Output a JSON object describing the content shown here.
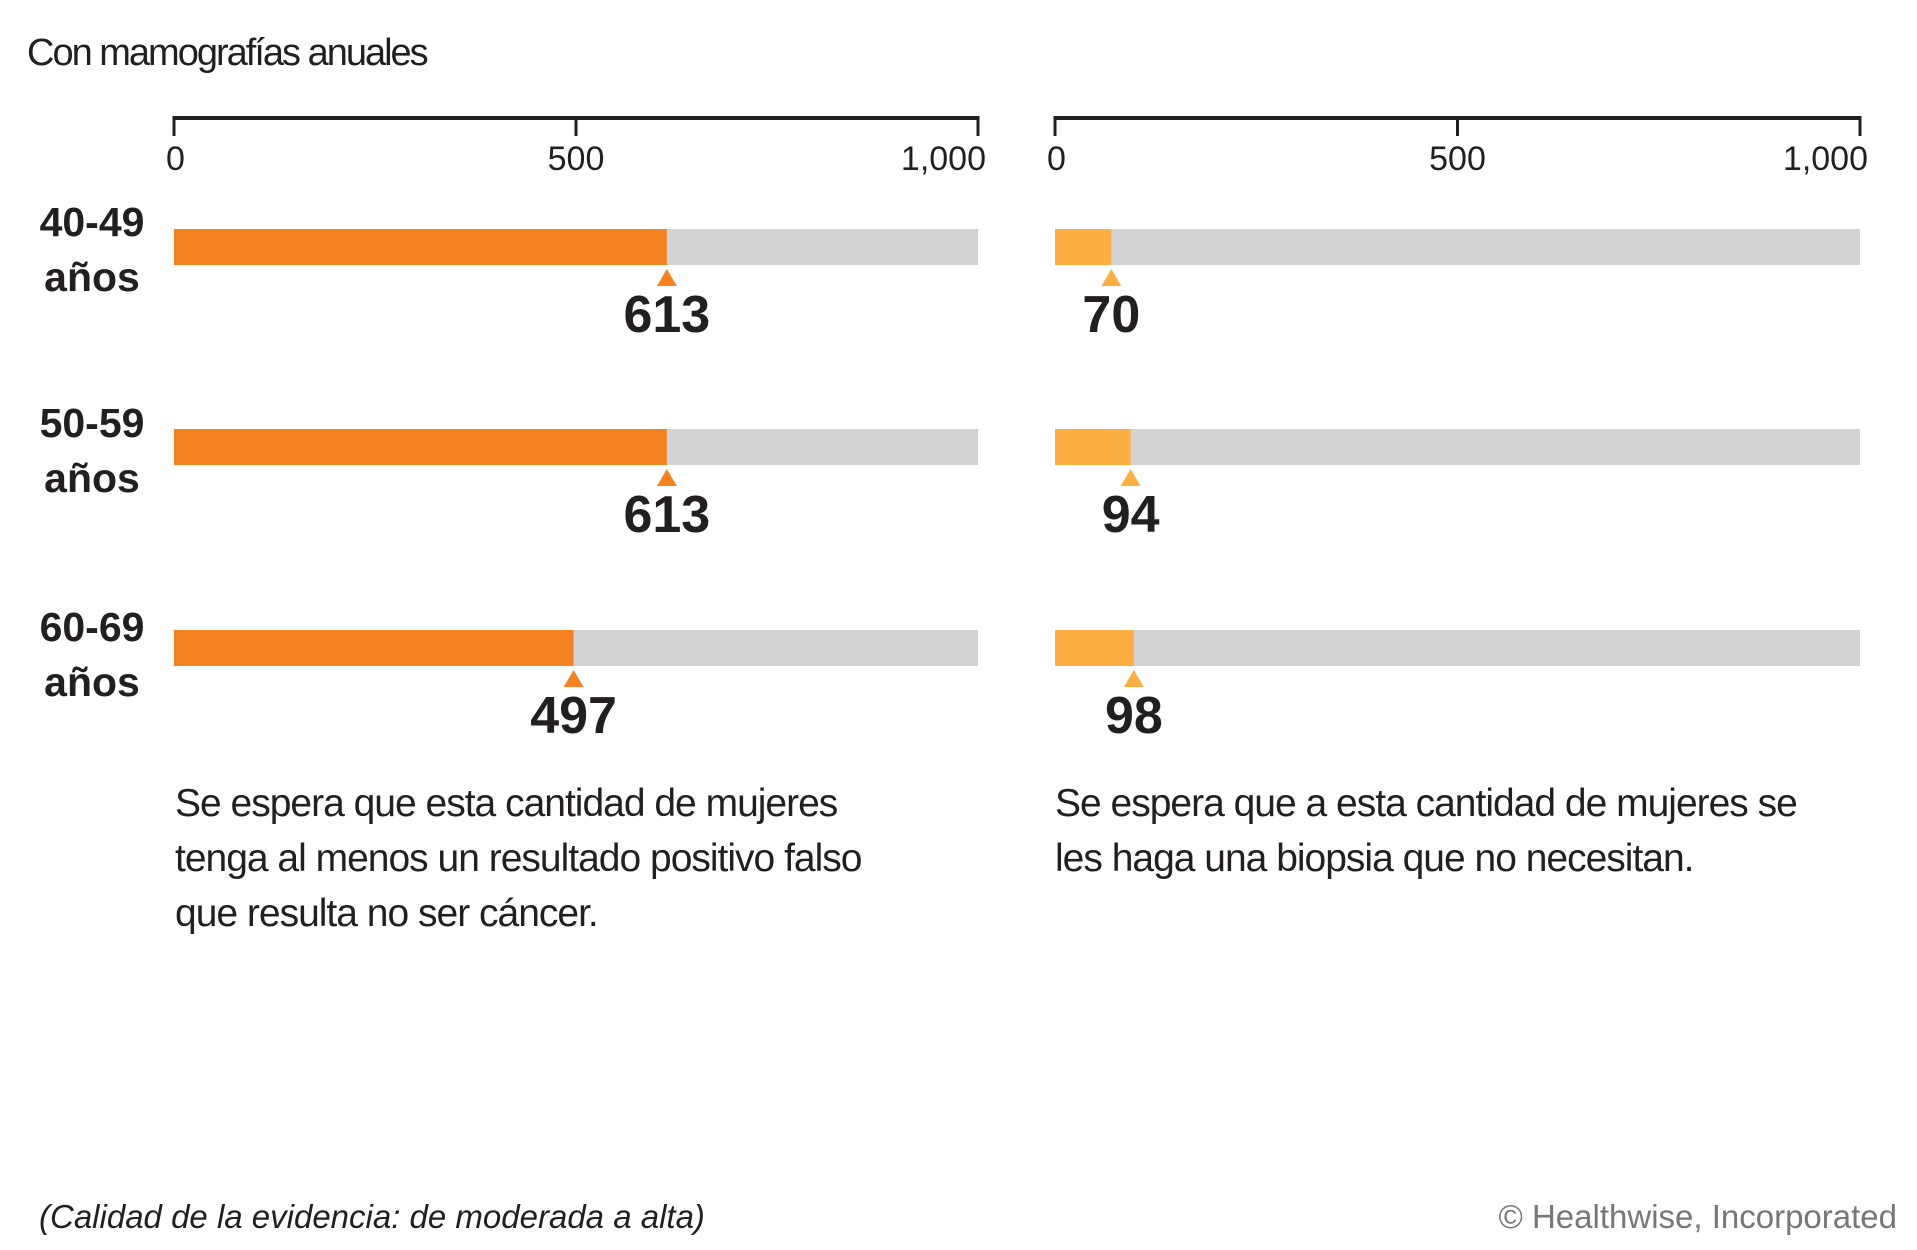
{
  "title": "Con mamografías anuales",
  "age_groups": [
    "40-49\naños",
    "50-59\naños",
    "60-69\naños"
  ],
  "chart_data": [
    {
      "type": "bar",
      "orientation": "horizontal",
      "categories": [
        "40-49 años",
        "50-59 años",
        "60-69 años"
      ],
      "values": [
        613,
        613,
        497
      ],
      "xlim": [
        0,
        1000
      ],
      "ticks": [
        "0",
        "500",
        "1,000"
      ],
      "tick_values": [
        0,
        500,
        1000
      ],
      "fill_color": "#F58220",
      "track_color": "#D1D3D4",
      "caption": "Se espera que esta cantidad de mujeres tenga al menos un resultado positivo falso que resulta no ser cáncer.",
      "caption_lines": [
        "Se espera que esta cantidad de mujeres",
        "tenga al menos un resultado positivo falso",
        "que resulta no ser cáncer."
      ]
    },
    {
      "type": "bar",
      "orientation": "horizontal",
      "categories": [
        "40-49 años",
        "50-59 años",
        "60-69 años"
      ],
      "values": [
        70,
        94,
        98
      ],
      "xlim": [
        0,
        1000
      ],
      "ticks": [
        "0",
        "500",
        "1,000"
      ],
      "tick_values": [
        0,
        500,
        1000
      ],
      "fill_color": "#FDAF44",
      "track_color": "#D1D3D4",
      "caption": "Se espera que a esta cantidad de mujeres se les haga una biopsia que no necesitan.",
      "caption_lines": [
        "Se espera que a esta cantidad de mujeres se",
        "les haga una biopsia que no necesitan."
      ]
    }
  ],
  "footer": {
    "evidence": "(Calidad de la evidencia: de moderada a alta)",
    "copyright": "© Healthwise, Incorporated"
  }
}
